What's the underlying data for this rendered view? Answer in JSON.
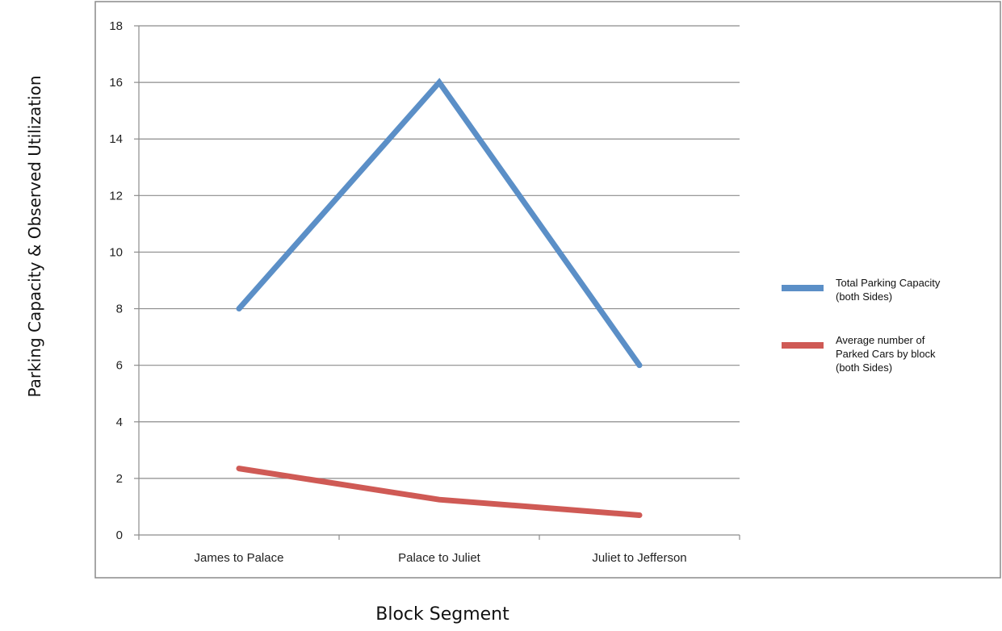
{
  "chart_data": {
    "type": "line",
    "title": "",
    "xlabel": "Block Segment",
    "ylabel": "Parking Capacity & Observed Utilization",
    "categories": [
      "James to Palace",
      "Palace to Juliet",
      "Juliet to Jefferson"
    ],
    "ylim": [
      0,
      18
    ],
    "yticks": [
      0,
      2,
      4,
      6,
      8,
      10,
      12,
      14,
      16,
      18
    ],
    "grid": true,
    "legend_position": "right",
    "series": [
      {
        "name": "Total Parking Capacity (both Sides)",
        "legend_lines": [
          "Total Parking Capacity",
          "(both Sides)"
        ],
        "color": "#5b8fc7",
        "values": [
          8,
          16,
          6
        ]
      },
      {
        "name": "Average number of Parked Cars by block (both Sides)",
        "legend_lines": [
          "Average number of",
          "Parked Cars by block",
          "(both Sides)"
        ],
        "color": "#cf5a55",
        "values": [
          2.35,
          1.25,
          0.7
        ]
      }
    ]
  }
}
